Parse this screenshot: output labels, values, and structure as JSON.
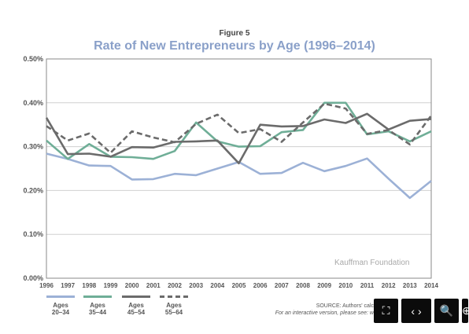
{
  "figure_label": "Figure 5",
  "watermark": "Kauffman Foundation",
  "source_line1": "SOURCE: Authors' calc",
  "source_line2": "For an interactive version, please see: w",
  "toolbar": [
    {
      "name": "fit-page-button",
      "icon": "fit-icon",
      "glyph": "⛶"
    },
    {
      "name": "fit-width-button",
      "icon": "expand-horizontal-icon",
      "glyph": "‹ ›"
    },
    {
      "name": "zoom-out-button",
      "icon": "zoom-out-icon",
      "glyph": "🔍"
    },
    {
      "name": "zoom-in-button",
      "icon": "zoom-in-icon",
      "glyph": "⊕"
    }
  ],
  "chart_data": {
    "type": "line",
    "title": "Rate of New Entrepreneurs by Age (1996–2014)",
    "x": [
      1996,
      1997,
      1998,
      1999,
      2000,
      2001,
      2002,
      2003,
      2004,
      2005,
      2006,
      2007,
      2008,
      2009,
      2010,
      2011,
      2012,
      2013,
      2014
    ],
    "x_tick_labels": [
      "1996",
      "1997",
      "1998",
      "1999",
      "2000",
      "2001",
      "2002",
      "2003",
      "2004",
      "2005",
      "2006",
      "2007",
      "2008",
      "2009",
      "2010",
      "2011",
      "2012",
      "2013",
      "2014"
    ],
    "ylim": [
      0,
      0.5
    ],
    "y_ticks": [
      0,
      0.1,
      0.2,
      0.3,
      0.4,
      0.5
    ],
    "y_tick_labels": [
      "0.00%",
      "0.10%",
      "0.20%",
      "0.30%",
      "0.40%",
      "0.50%"
    ],
    "grid": true,
    "legend_position": "bottom-left",
    "series": [
      {
        "name": "Ages 20–34",
        "label_lines": [
          "Ages",
          "20–34"
        ],
        "color": "#9cb1d6",
        "dash": "solid",
        "values": [
          0.284,
          0.272,
          0.257,
          0.256,
          0.225,
          0.226,
          0.238,
          0.235,
          0.25,
          0.265,
          0.238,
          0.24,
          0.263,
          0.244,
          0.256,
          0.273,
          0.227,
          0.183,
          0.222
        ]
      },
      {
        "name": "Ages 35–44",
        "label_lines": [
          "Ages",
          "35–44"
        ],
        "color": "#6fae97",
        "dash": "solid",
        "values": [
          0.314,
          0.272,
          0.306,
          0.277,
          0.276,
          0.272,
          0.29,
          0.355,
          0.312,
          0.3,
          0.301,
          0.333,
          0.338,
          0.4,
          0.4,
          0.328,
          0.335,
          0.312,
          0.335
        ]
      },
      {
        "name": "Ages 45–54",
        "label_lines": [
          "Ages",
          "45–54"
        ],
        "color": "#6b6b6b",
        "dash": "solid",
        "values": [
          0.366,
          0.283,
          0.284,
          0.277,
          0.299,
          0.298,
          0.311,
          0.312,
          0.314,
          0.262,
          0.35,
          0.346,
          0.347,
          0.362,
          0.354,
          0.375,
          0.339,
          0.359,
          0.363
        ]
      },
      {
        "name": "Ages 55–64",
        "label_lines": [
          "Ages",
          "55–64"
        ],
        "color": "#6b6b6b",
        "dash": "dashed",
        "values": [
          0.347,
          0.314,
          0.33,
          0.286,
          0.335,
          0.321,
          0.31,
          0.352,
          0.373,
          0.331,
          0.34,
          0.311,
          0.355,
          0.398,
          0.387,
          0.329,
          0.338,
          0.305,
          0.371
        ]
      }
    ]
  }
}
